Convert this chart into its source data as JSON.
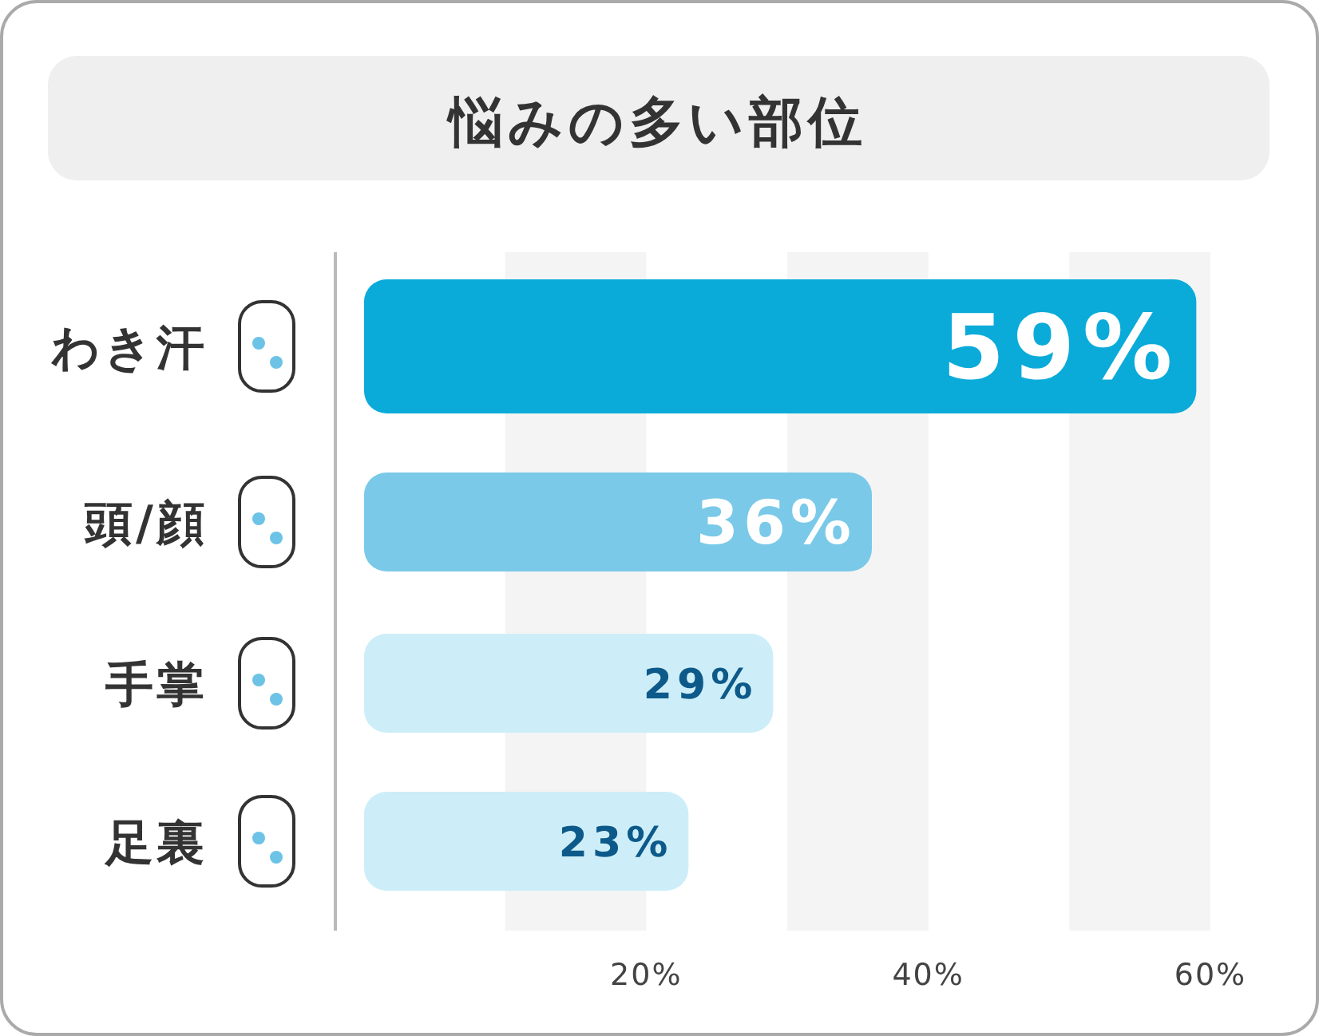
{
  "chart_data": {
    "type": "bar",
    "orientation": "horizontal",
    "title": "悩みの多い部位",
    "categories": [
      "わき汗",
      "頭/顔",
      "手掌",
      "足裏"
    ],
    "values": [
      59,
      36,
      29,
      23
    ],
    "colors": [
      "#0aabd9",
      "#7ac9e8",
      "#cdeef8",
      "#cdeef8"
    ],
    "value_labels": [
      "59%",
      "36%",
      "29%",
      "23%"
    ],
    "xlim": [
      0,
      60
    ],
    "xticks": [
      {
        "value": 20,
        "label": "20%"
      },
      {
        "value": 40,
        "label": "40%"
      },
      {
        "value": 60,
        "label": "60%"
      }
    ],
    "bands": [
      {
        "axis": "x",
        "from": 10,
        "to": 20,
        "color": "#f4f4f4"
      },
      {
        "axis": "x",
        "from": 30,
        "to": 40,
        "color": "#f4f4f4"
      },
      {
        "axis": "x",
        "from": 50,
        "to": 60,
        "color": "#f4f4f4"
      }
    ],
    "grid": false
  }
}
